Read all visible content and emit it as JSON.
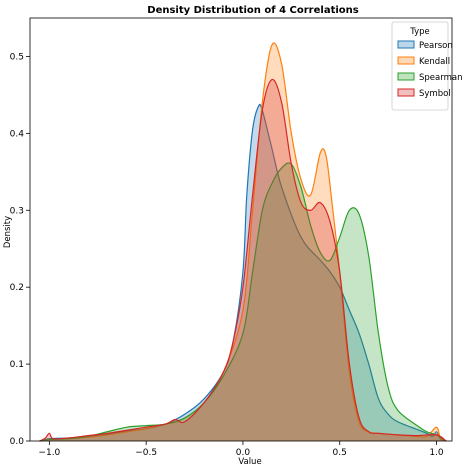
{
  "chart_data": {
    "type": "area",
    "title": "Density Distribution of 4 Correlations",
    "xlabel": "Value",
    "ylabel": "Density",
    "xlim": [
      -1.1,
      1.08
    ],
    "ylim": [
      0,
      0.55
    ],
    "x_ticks": [
      -1.0,
      -0.5,
      0.0,
      0.5,
      1.0
    ],
    "x_tick_labels": [
      "−1.0",
      "−0.5",
      "0.0",
      "0.5",
      "1.0"
    ],
    "y_ticks": [
      0.0,
      0.1,
      0.2,
      0.3,
      0.4,
      0.5
    ],
    "y_tick_labels": [
      "0.0",
      "0.1",
      "0.2",
      "0.3",
      "0.4",
      "0.5"
    ],
    "grid": false,
    "legend": {
      "title": "Type",
      "placement": "top-right"
    },
    "series": [
      {
        "name": "Pearson",
        "color": "#1f77b4",
        "points": [
          [
            -1.05,
            0.0
          ],
          [
            -1.0,
            0.003
          ],
          [
            -0.9,
            0.004
          ],
          [
            -0.8,
            0.006
          ],
          [
            -0.7,
            0.009
          ],
          [
            -0.6,
            0.013
          ],
          [
            -0.5,
            0.016
          ],
          [
            -0.4,
            0.022
          ],
          [
            -0.3,
            0.035
          ],
          [
            -0.2,
            0.055
          ],
          [
            -0.1,
            0.09
          ],
          [
            -0.05,
            0.13
          ],
          [
            0.0,
            0.22
          ],
          [
            0.02,
            0.32
          ],
          [
            0.05,
            0.405
          ],
          [
            0.08,
            0.435
          ],
          [
            0.1,
            0.43
          ],
          [
            0.15,
            0.38
          ],
          [
            0.2,
            0.33
          ],
          [
            0.3,
            0.265
          ],
          [
            0.4,
            0.235
          ],
          [
            0.45,
            0.22
          ],
          [
            0.5,
            0.2
          ],
          [
            0.55,
            0.17
          ],
          [
            0.6,
            0.14
          ],
          [
            0.65,
            0.1
          ],
          [
            0.7,
            0.055
          ],
          [
            0.75,
            0.035
          ],
          [
            0.8,
            0.025
          ],
          [
            0.9,
            0.015
          ],
          [
            0.95,
            0.01
          ],
          [
            0.98,
            0.006
          ],
          [
            1.0,
            0.012
          ],
          [
            1.02,
            0.003
          ],
          [
            1.05,
            0.0
          ]
        ]
      },
      {
        "name": "Kendall",
        "color": "#ff7f0e",
        "points": [
          [
            -1.05,
            0.0
          ],
          [
            -1.0,
            0.002
          ],
          [
            -0.9,
            0.003
          ],
          [
            -0.8,
            0.005
          ],
          [
            -0.7,
            0.008
          ],
          [
            -0.6,
            0.012
          ],
          [
            -0.5,
            0.016
          ],
          [
            -0.4,
            0.022
          ],
          [
            -0.3,
            0.03
          ],
          [
            -0.2,
            0.05
          ],
          [
            -0.1,
            0.09
          ],
          [
            0.0,
            0.17
          ],
          [
            0.05,
            0.3
          ],
          [
            0.1,
            0.44
          ],
          [
            0.15,
            0.515
          ],
          [
            0.2,
            0.49
          ],
          [
            0.25,
            0.4
          ],
          [
            0.3,
            0.34
          ],
          [
            0.35,
            0.32
          ],
          [
            0.4,
            0.375
          ],
          [
            0.43,
            0.37
          ],
          [
            0.46,
            0.31
          ],
          [
            0.5,
            0.22
          ],
          [
            0.55,
            0.09
          ],
          [
            0.6,
            0.025
          ],
          [
            0.65,
            0.012
          ],
          [
            0.7,
            0.01
          ],
          [
            0.8,
            0.008
          ],
          [
            0.9,
            0.006
          ],
          [
            0.95,
            0.006
          ],
          [
            1.0,
            0.018
          ],
          [
            1.02,
            0.004
          ],
          [
            1.05,
            0.0
          ]
        ]
      },
      {
        "name": "Spearman",
        "color": "#2ca02c",
        "points": [
          [
            -1.05,
            0.0
          ],
          [
            -1.0,
            0.002
          ],
          [
            -0.9,
            0.003
          ],
          [
            -0.8,
            0.006
          ],
          [
            -0.7,
            0.012
          ],
          [
            -0.6,
            0.018
          ],
          [
            -0.5,
            0.02
          ],
          [
            -0.4,
            0.022
          ],
          [
            -0.3,
            0.03
          ],
          [
            -0.2,
            0.05
          ],
          [
            -0.1,
            0.085
          ],
          [
            0.0,
            0.14
          ],
          [
            0.05,
            0.22
          ],
          [
            0.1,
            0.3
          ],
          [
            0.15,
            0.335
          ],
          [
            0.2,
            0.355
          ],
          [
            0.25,
            0.36
          ],
          [
            0.3,
            0.33
          ],
          [
            0.35,
            0.28
          ],
          [
            0.4,
            0.245
          ],
          [
            0.45,
            0.235
          ],
          [
            0.5,
            0.265
          ],
          [
            0.55,
            0.3
          ],
          [
            0.6,
            0.295
          ],
          [
            0.65,
            0.24
          ],
          [
            0.7,
            0.14
          ],
          [
            0.75,
            0.07
          ],
          [
            0.8,
            0.04
          ],
          [
            0.9,
            0.02
          ],
          [
            0.95,
            0.012
          ],
          [
            1.0,
            0.008
          ],
          [
            1.03,
            0.003
          ],
          [
            1.05,
            0.0
          ]
        ]
      },
      {
        "name": "Symbol",
        "color": "#d62728",
        "points": [
          [
            -1.05,
            0.0
          ],
          [
            -1.02,
            0.004
          ],
          [
            -1.0,
            0.01
          ],
          [
            -0.98,
            0.003
          ],
          [
            -0.9,
            0.004
          ],
          [
            -0.8,
            0.007
          ],
          [
            -0.7,
            0.01
          ],
          [
            -0.6,
            0.014
          ],
          [
            -0.5,
            0.018
          ],
          [
            -0.4,
            0.022
          ],
          [
            -0.35,
            0.028
          ],
          [
            -0.3,
            0.025
          ],
          [
            -0.2,
            0.05
          ],
          [
            -0.1,
            0.09
          ],
          [
            -0.05,
            0.13
          ],
          [
            0.0,
            0.2
          ],
          [
            0.05,
            0.32
          ],
          [
            0.1,
            0.43
          ],
          [
            0.15,
            0.47
          ],
          [
            0.2,
            0.44
          ],
          [
            0.25,
            0.36
          ],
          [
            0.3,
            0.31
          ],
          [
            0.35,
            0.3
          ],
          [
            0.4,
            0.31
          ],
          [
            0.45,
            0.285
          ],
          [
            0.5,
            0.22
          ],
          [
            0.55,
            0.1
          ],
          [
            0.6,
            0.03
          ],
          [
            0.65,
            0.012
          ],
          [
            0.7,
            0.01
          ],
          [
            0.8,
            0.008
          ],
          [
            0.9,
            0.007
          ],
          [
            1.0,
            0.008
          ],
          [
            1.05,
            0.0
          ]
        ]
      }
    ]
  }
}
